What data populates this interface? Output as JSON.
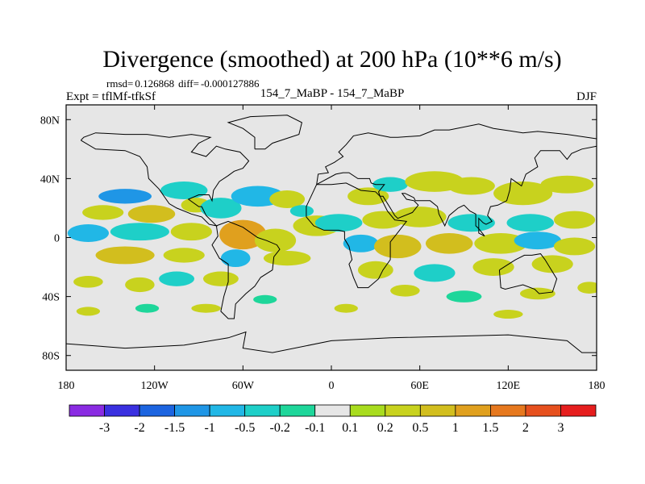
{
  "chart_data": {
    "type": "heatmap",
    "title": "Divergence (smoothed) at 200 hPa (10**6 m/s)",
    "stats": {
      "rmsd_label": "rmsd=",
      "rmsd": "0.126868",
      "diff_label": "diff=",
      "diff": "-0.000127886"
    },
    "left_label": "Expt = tflMf-tfkSf",
    "center_label": "154_7_MaBP - 154_7_MaBP",
    "right_label": "DJF",
    "x_range": [
      -180,
      180
    ],
    "y_range": [
      -90,
      90
    ],
    "x_ticks": [
      {
        "value": -180,
        "label": "180"
      },
      {
        "value": -120,
        "label": "120W"
      },
      {
        "value": -60,
        "label": "60W"
      },
      {
        "value": 0,
        "label": "0"
      },
      {
        "value": 60,
        "label": "60E"
      },
      {
        "value": 120,
        "label": "120E"
      },
      {
        "value": 180,
        "label": "180"
      }
    ],
    "y_ticks": [
      {
        "value": 80,
        "label": "80N"
      },
      {
        "value": 40,
        "label": "40N"
      },
      {
        "value": 0,
        "label": "0"
      },
      {
        "value": -40,
        "label": "40S"
      },
      {
        "value": -80,
        "label": "80S"
      }
    ],
    "colorbar": {
      "colors": [
        "#8a2be2",
        "#3a30e0",
        "#1c64e0",
        "#1f96e6",
        "#21b7e6",
        "#1ecfc8",
        "#1ed69a",
        "#e6e6e6",
        "#a8dc1e",
        "#c8d21e",
        "#d2be1e",
        "#e0a01e",
        "#e6781e",
        "#e6501e",
        "#e61e1e"
      ],
      "boundaries": [
        "-3",
        "-2",
        "-1.5",
        "-1",
        "-0.5",
        "-0.2",
        "-0.1",
        "0.1",
        "0.2",
        "0.5",
        "1",
        "1.5",
        "2",
        "3"
      ]
    },
    "features": [
      {
        "lon": -140,
        "lat": 28,
        "rx": 18,
        "ry": 5,
        "level": 3
      },
      {
        "lon": -100,
        "lat": 32,
        "rx": 16,
        "ry": 6,
        "level": 5
      },
      {
        "lon": -155,
        "lat": 17,
        "rx": 14,
        "ry": 5,
        "level": 9
      },
      {
        "lon": -122,
        "lat": 16,
        "rx": 16,
        "ry": 6,
        "level": 10
      },
      {
        "lon": -92,
        "lat": 22,
        "rx": 10,
        "ry": 5,
        "level": 9
      },
      {
        "lon": -75,
        "lat": 20,
        "rx": 14,
        "ry": 7,
        "level": 5
      },
      {
        "lon": -50,
        "lat": 28,
        "rx": 18,
        "ry": 7,
        "level": 4
      },
      {
        "lon": -30,
        "lat": 26,
        "rx": 12,
        "ry": 6,
        "level": 9
      },
      {
        "lon": -20,
        "lat": 18,
        "rx": 8,
        "ry": 4,
        "level": 5
      },
      {
        "lon": -165,
        "lat": 3,
        "rx": 14,
        "ry": 6,
        "level": 4
      },
      {
        "lon": -130,
        "lat": 4,
        "rx": 20,
        "ry": 6,
        "level": 5
      },
      {
        "lon": -95,
        "lat": 4,
        "rx": 14,
        "ry": 6,
        "level": 9
      },
      {
        "lon": -60,
        "lat": 2,
        "rx": 16,
        "ry": 10,
        "level": 11
      },
      {
        "lon": -38,
        "lat": -2,
        "rx": 14,
        "ry": 8,
        "level": 9
      },
      {
        "lon": -10,
        "lat": 8,
        "rx": 16,
        "ry": 7,
        "level": 9
      },
      {
        "lon": -140,
        "lat": -12,
        "rx": 20,
        "ry": 6,
        "level": 10
      },
      {
        "lon": -100,
        "lat": -12,
        "rx": 14,
        "ry": 5,
        "level": 9
      },
      {
        "lon": -65,
        "lat": -14,
        "rx": 10,
        "ry": 6,
        "level": 4
      },
      {
        "lon": -30,
        "lat": -14,
        "rx": 16,
        "ry": 5,
        "level": 9
      },
      {
        "lon": -165,
        "lat": -30,
        "rx": 10,
        "ry": 4,
        "level": 9
      },
      {
        "lon": -130,
        "lat": -32,
        "rx": 10,
        "ry": 5,
        "level": 9
      },
      {
        "lon": -105,
        "lat": -28,
        "rx": 12,
        "ry": 5,
        "level": 5
      },
      {
        "lon": -75,
        "lat": -28,
        "rx": 12,
        "ry": 5,
        "level": 9
      },
      {
        "lon": -165,
        "lat": -50,
        "rx": 8,
        "ry": 3,
        "level": 9
      },
      {
        "lon": -125,
        "lat": -48,
        "rx": 8,
        "ry": 3,
        "level": 6
      },
      {
        "lon": -85,
        "lat": -48,
        "rx": 10,
        "ry": 3,
        "level": 9
      },
      {
        "lon": -45,
        "lat": -42,
        "rx": 8,
        "ry": 3,
        "level": 6
      },
      {
        "lon": 25,
        "lat": 28,
        "rx": 14,
        "ry": 6,
        "level": 9
      },
      {
        "lon": 40,
        "lat": 36,
        "rx": 12,
        "ry": 5,
        "level": 5
      },
      {
        "lon": 70,
        "lat": 38,
        "rx": 20,
        "ry": 7,
        "level": 9
      },
      {
        "lon": 95,
        "lat": 35,
        "rx": 16,
        "ry": 6,
        "level": 9
      },
      {
        "lon": 130,
        "lat": 30,
        "rx": 20,
        "ry": 8,
        "level": 9
      },
      {
        "lon": 160,
        "lat": 36,
        "rx": 18,
        "ry": 6,
        "level": 9
      },
      {
        "lon": 5,
        "lat": 10,
        "rx": 16,
        "ry": 6,
        "level": 5
      },
      {
        "lon": 35,
        "lat": 12,
        "rx": 14,
        "ry": 6,
        "level": 9
      },
      {
        "lon": 60,
        "lat": 14,
        "rx": 18,
        "ry": 7,
        "level": 9
      },
      {
        "lon": 95,
        "lat": 10,
        "rx": 16,
        "ry": 6,
        "level": 5
      },
      {
        "lon": 135,
        "lat": 10,
        "rx": 16,
        "ry": 6,
        "level": 5
      },
      {
        "lon": 165,
        "lat": 12,
        "rx": 14,
        "ry": 6,
        "level": 9
      },
      {
        "lon": 20,
        "lat": -4,
        "rx": 12,
        "ry": 6,
        "level": 4
      },
      {
        "lon": 45,
        "lat": -6,
        "rx": 16,
        "ry": 8,
        "level": 10
      },
      {
        "lon": 80,
        "lat": -4,
        "rx": 16,
        "ry": 7,
        "level": 10
      },
      {
        "lon": 115,
        "lat": -4,
        "rx": 18,
        "ry": 7,
        "level": 9
      },
      {
        "lon": 140,
        "lat": -2,
        "rx": 16,
        "ry": 6,
        "level": 4
      },
      {
        "lon": 165,
        "lat": -6,
        "rx": 14,
        "ry": 6,
        "level": 9
      },
      {
        "lon": 30,
        "lat": -22,
        "rx": 12,
        "ry": 6,
        "level": 9
      },
      {
        "lon": 70,
        "lat": -24,
        "rx": 14,
        "ry": 6,
        "level": 5
      },
      {
        "lon": 110,
        "lat": -20,
        "rx": 14,
        "ry": 6,
        "level": 9
      },
      {
        "lon": 150,
        "lat": -18,
        "rx": 14,
        "ry": 6,
        "level": 9
      },
      {
        "lon": 50,
        "lat": -36,
        "rx": 10,
        "ry": 4,
        "level": 9
      },
      {
        "lon": 90,
        "lat": -40,
        "rx": 12,
        "ry": 4,
        "level": 6
      },
      {
        "lon": 140,
        "lat": -38,
        "rx": 12,
        "ry": 4,
        "level": 9
      },
      {
        "lon": 175,
        "lat": -34,
        "rx": 8,
        "ry": 4,
        "level": 9
      },
      {
        "lon": 10,
        "lat": -48,
        "rx": 8,
        "ry": 3,
        "level": 9
      },
      {
        "lon": 120,
        "lat": -52,
        "rx": 10,
        "ry": 3,
        "level": 9
      }
    ],
    "coastlines": [
      [
        [
          -170,
          66
        ],
        [
          -160,
          60
        ],
        [
          -140,
          59
        ],
        [
          -130,
          55
        ],
        [
          -125,
          48
        ],
        [
          -124,
          40
        ],
        [
          -117,
          33
        ],
        [
          -110,
          23
        ],
        [
          -105,
          20
        ],
        [
          -95,
          16
        ],
        [
          -88,
          14
        ],
        [
          -83,
          9
        ],
        [
          -78,
          8
        ],
        [
          -80,
          10
        ],
        [
          -85,
          15
        ],
        [
          -88,
          21
        ],
        [
          -90,
          21
        ],
        [
          -97,
          26
        ],
        [
          -90,
          29
        ],
        [
          -83,
          29
        ],
        [
          -81,
          25
        ],
        [
          -80,
          32
        ],
        [
          -76,
          38
        ],
        [
          -70,
          42
        ],
        [
          -66,
          45
        ],
        [
          -60,
          47
        ],
        [
          -56,
          52
        ],
        [
          -62,
          58
        ],
        [
          -72,
          60
        ],
        [
          -78,
          62
        ],
        [
          -85,
          55
        ],
        [
          -95,
          58
        ],
        [
          -90,
          64
        ],
        [
          -82,
          68
        ],
        [
          -95,
          70
        ],
        [
          -110,
          68
        ],
        [
          -125,
          70
        ],
        [
          -140,
          70
        ],
        [
          -160,
          71
        ],
        [
          -168,
          68
        ],
        [
          -170,
          66
        ]
      ],
      [
        [
          -78,
          8
        ],
        [
          -77,
          1
        ],
        [
          -81,
          -5
        ],
        [
          -76,
          -14
        ],
        [
          -70,
          -18
        ],
        [
          -70,
          -30
        ],
        [
          -73,
          -40
        ],
        [
          -75,
          -50
        ],
        [
          -70,
          -55
        ],
        [
          -66,
          -55
        ],
        [
          -65,
          -45
        ],
        [
          -58,
          -38
        ],
        [
          -52,
          -33
        ],
        [
          -48,
          -27
        ],
        [
          -40,
          -22
        ],
        [
          -39,
          -13
        ],
        [
          -35,
          -8
        ],
        [
          -37,
          -5
        ],
        [
          -44,
          -2
        ],
        [
          -50,
          0
        ],
        [
          -60,
          7
        ],
        [
          -70,
          11
        ],
        [
          -78,
          8
        ]
      ],
      [
        [
          -52,
          60
        ],
        [
          -45,
          60
        ],
        [
          -40,
          64
        ],
        [
          -22,
          70
        ],
        [
          -20,
          78
        ],
        [
          -30,
          83
        ],
        [
          -55,
          82
        ],
        [
          -70,
          78
        ],
        [
          -60,
          74
        ],
        [
          -52,
          68
        ],
        [
          -52,
          60
        ]
      ],
      [
        [
          -10,
          36
        ],
        [
          -17,
          21
        ],
        [
          -17,
          14
        ],
        [
          -12,
          8
        ],
        [
          -5,
          5
        ],
        [
          5,
          5
        ],
        [
          9,
          4
        ],
        [
          9,
          -1
        ],
        [
          12,
          -6
        ],
        [
          14,
          -15
        ],
        [
          12,
          -18
        ],
        [
          15,
          -27
        ],
        [
          18,
          -34
        ],
        [
          25,
          -34
        ],
        [
          32,
          -28
        ],
        [
          35,
          -22
        ],
        [
          40,
          -15
        ],
        [
          40,
          -10
        ],
        [
          40,
          -3
        ],
        [
          44,
          2
        ],
        [
          51,
          11
        ],
        [
          43,
          12
        ],
        [
          38,
          18
        ],
        [
          33,
          28
        ],
        [
          30,
          31
        ],
        [
          20,
          32
        ],
        [
          10,
          37
        ],
        [
          0,
          36
        ],
        [
          -10,
          36
        ]
      ],
      [
        [
          -10,
          36
        ],
        [
          -9,
          43
        ],
        [
          -2,
          44
        ],
        [
          -4,
          48
        ],
        [
          2,
          51
        ],
        [
          5,
          53
        ],
        [
          8,
          55
        ],
        [
          5,
          58
        ],
        [
          10,
          63
        ],
        [
          15,
          69
        ],
        [
          25,
          71
        ],
        [
          40,
          68
        ],
        [
          45,
          68
        ],
        [
          60,
          69
        ],
        [
          70,
          73
        ],
        [
          80,
          73
        ],
        [
          100,
          77
        ],
        [
          110,
          74
        ],
        [
          130,
          71
        ],
        [
          140,
          72
        ],
        [
          160,
          70
        ],
        [
          180,
          67
        ],
        [
          180,
          62
        ],
        [
          170,
          60
        ],
        [
          163,
          57
        ],
        [
          160,
          53
        ],
        [
          155,
          59
        ],
        [
          142,
          59
        ],
        [
          138,
          54
        ],
        [
          140,
          48
        ],
        [
          132,
          43
        ],
        [
          129,
          35
        ],
        [
          122,
          40
        ],
        [
          121,
          32
        ],
        [
          119,
          25
        ],
        [
          113,
          22
        ],
        [
          108,
          21
        ],
        [
          106,
          15
        ],
        [
          109,
          11
        ],
        [
          105,
          9
        ],
        [
          103,
          10
        ],
        [
          100,
          13
        ],
        [
          100,
          3
        ],
        [
          104,
          1
        ],
        [
          100,
          6
        ],
        [
          98,
          8
        ],
        [
          98,
          16
        ],
        [
          94,
          18
        ],
        [
          90,
          22
        ],
        [
          86,
          20
        ],
        [
          80,
          15
        ],
        [
          77,
          8
        ],
        [
          73,
          16
        ],
        [
          72,
          21
        ],
        [
          67,
          25
        ],
        [
          57,
          25
        ],
        [
          56,
          27
        ],
        [
          50,
          30
        ],
        [
          48,
          30
        ],
        [
          51,
          26
        ],
        [
          56,
          25
        ],
        [
          59,
          22
        ],
        [
          55,
          17
        ],
        [
          45,
          13
        ],
        [
          43,
          15
        ],
        [
          40,
          20
        ],
        [
          35,
          28
        ],
        [
          33,
          28
        ],
        [
          32,
          31
        ],
        [
          36,
          36
        ],
        [
          30,
          36
        ],
        [
          27,
          37
        ],
        [
          26,
          40
        ],
        [
          23,
          40
        ],
        [
          20,
          40
        ],
        [
          18,
          40
        ],
        [
          12,
          44
        ],
        [
          8,
          44
        ],
        [
          3,
          43
        ],
        [
          -10,
          36
        ]
      ],
      [
        [
          114,
          -22
        ],
        [
          115,
          -34
        ],
        [
          118,
          -35
        ],
        [
          130,
          -32
        ],
        [
          138,
          -35
        ],
        [
          141,
          -38
        ],
        [
          150,
          -37
        ],
        [
          153,
          -28
        ],
        [
          145,
          -15
        ],
        [
          142,
          -11
        ],
        [
          136,
          -12
        ],
        [
          131,
          -12
        ],
        [
          125,
          -15
        ],
        [
          114,
          -22
        ]
      ],
      [
        [
          -180,
          -72
        ],
        [
          -140,
          -75
        ],
        [
          -100,
          -73
        ],
        [
          -70,
          -68
        ],
        [
          -58,
          -64
        ],
        [
          -60,
          -75
        ],
        [
          -40,
          -78
        ],
        [
          0,
          -70
        ],
        [
          40,
          -68
        ],
        [
          80,
          -67
        ],
        [
          120,
          -66
        ],
        [
          160,
          -70
        ],
        [
          170,
          -78
        ],
        [
          180,
          -78
        ]
      ]
    ]
  }
}
